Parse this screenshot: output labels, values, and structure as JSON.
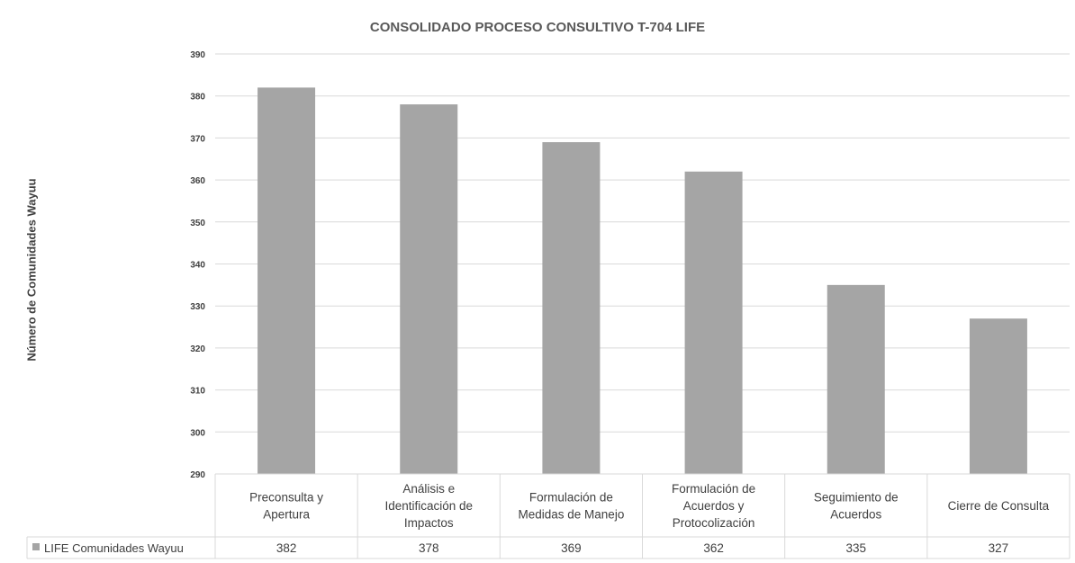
{
  "chart_data": {
    "type": "bar",
    "title": "CONSOLIDADO PROCESO CONSULTIVO T-704 LIFE",
    "ylabel": "Número de Comunidades Wayuu",
    "xlabel": "",
    "ylim": [
      290,
      390
    ],
    "yticks": [
      "390",
      "380",
      "370",
      "360",
      "350",
      "340",
      "330",
      "320",
      "310",
      "300",
      "290"
    ],
    "categories": [
      [
        "Preconsulta y",
        "Apertura"
      ],
      [
        "Análisis e",
        "Identificación de",
        "Impactos"
      ],
      [
        "Formulación de",
        "Medidas de Manejo"
      ],
      [
        "Formulación de",
        "Acuerdos y",
        "Protocolización"
      ],
      [
        "Seguimiento de",
        "Acuerdos"
      ],
      [
        "Cierre de Consulta"
      ]
    ],
    "series": [
      {
        "name": "LIFE Comunidades Wayuu",
        "values": [
          382,
          378,
          369,
          362,
          335,
          327
        ],
        "value_labels": [
          "382",
          "378",
          "369",
          "362",
          "335",
          "327"
        ]
      }
    ],
    "bar_color": "#a5a5a5",
    "grid": true,
    "legend": "data-table-left"
  }
}
